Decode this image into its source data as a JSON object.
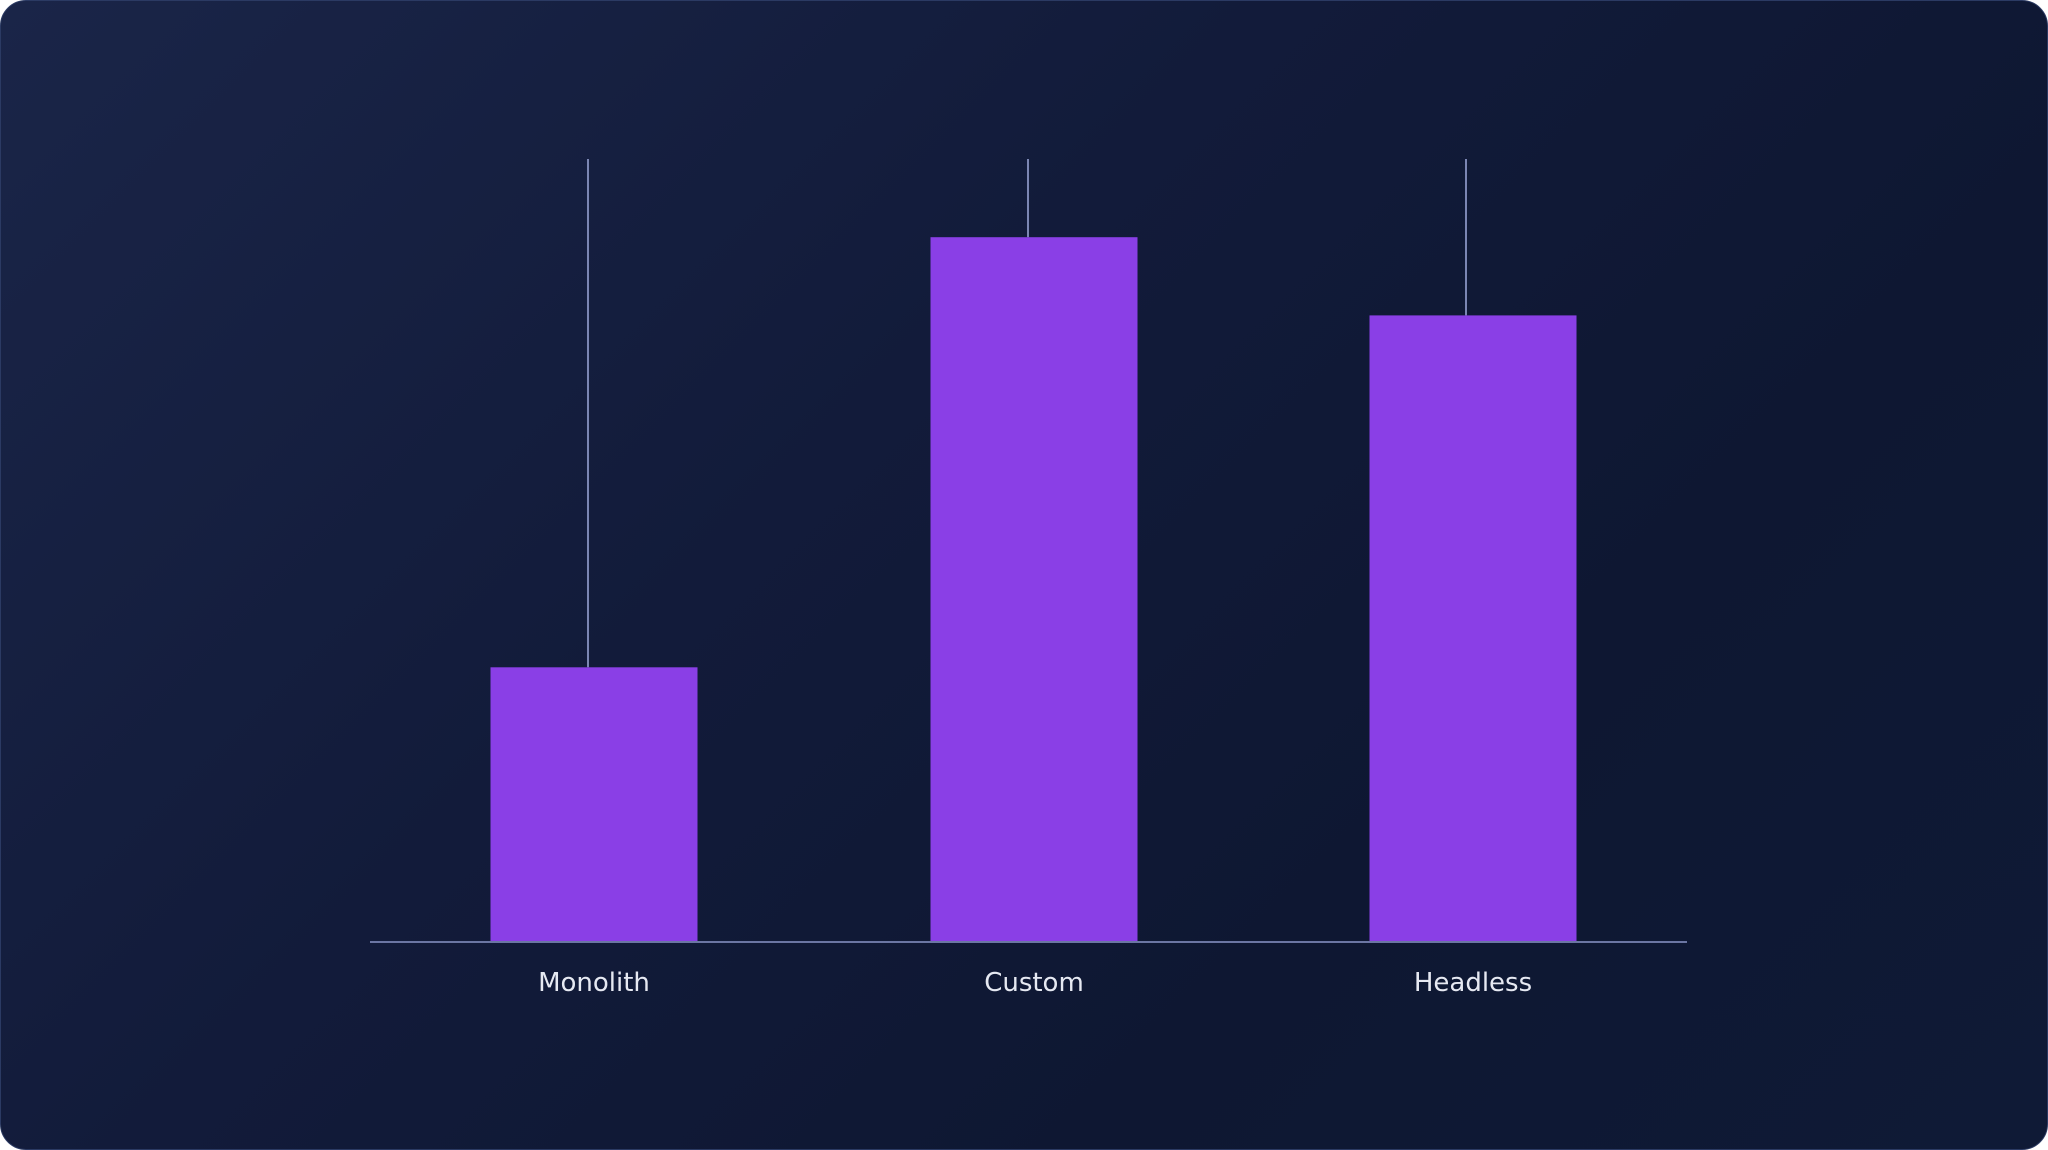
{
  "colors": {
    "background": "#121b3a",
    "bar": "#8a3fe6",
    "whisker": "#7b86b3",
    "axis": "#6b76a3",
    "label": "#e6e9f2"
  },
  "chart_data": {
    "type": "bar",
    "categories": [
      "Monolith",
      "Custom",
      "Headless"
    ],
    "values": [
      35,
      90,
      80
    ],
    "range_max": [
      100,
      100,
      100
    ],
    "ylim": [
      0,
      100
    ],
    "title": "",
    "xlabel": "",
    "ylabel": "",
    "grid": false,
    "legend": "none"
  }
}
